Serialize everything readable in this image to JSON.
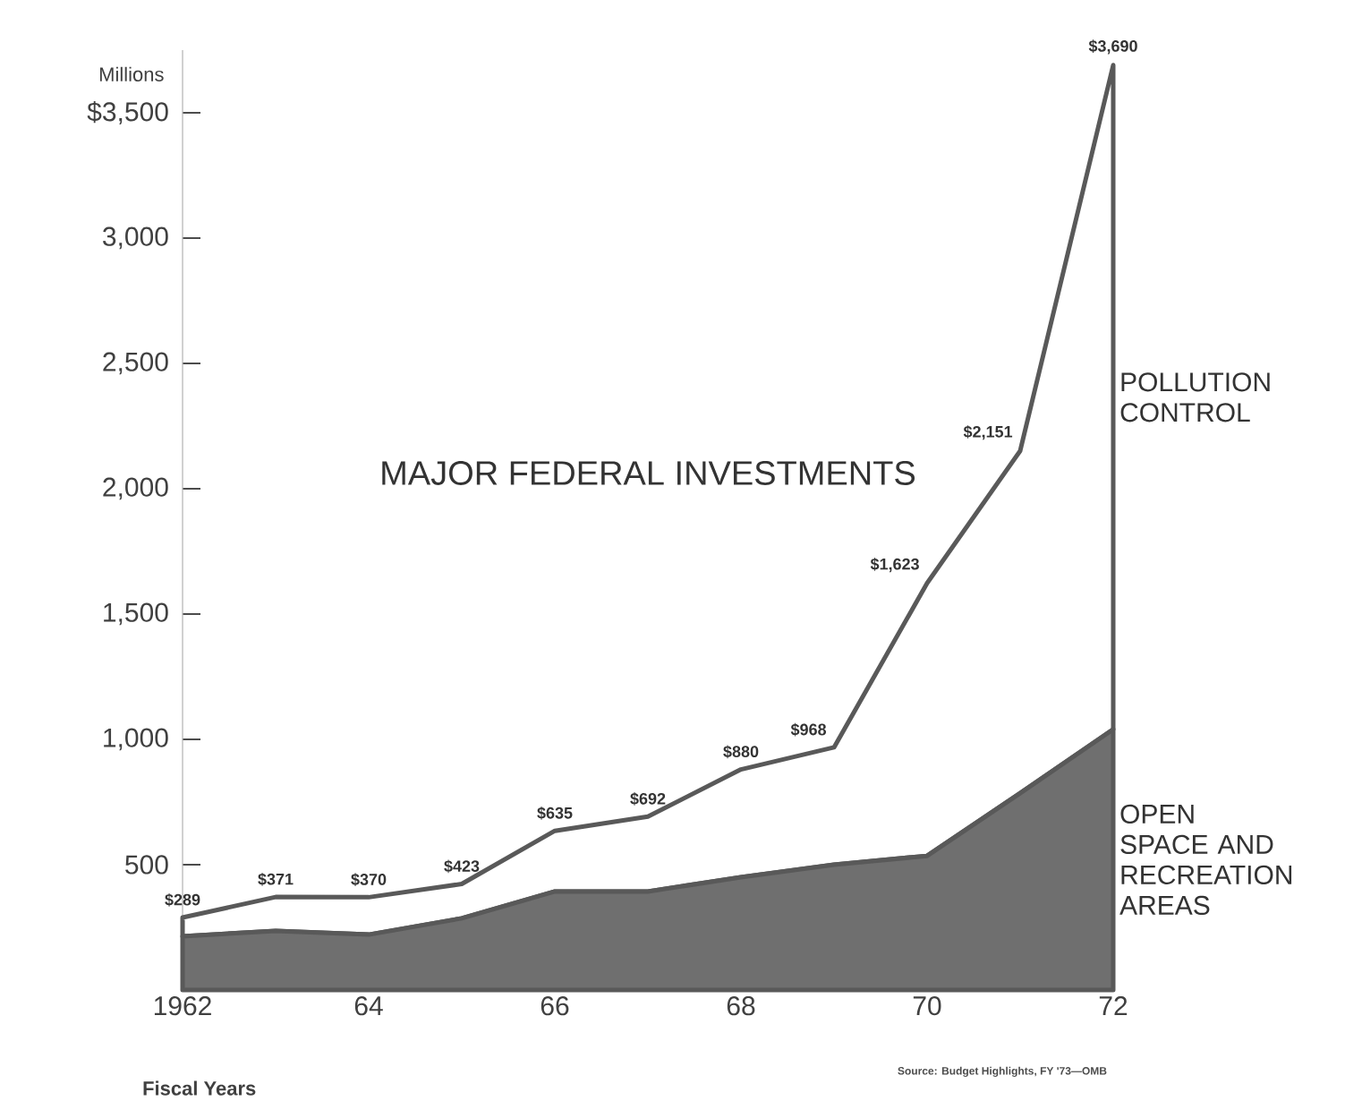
{
  "chart_data": {
    "type": "area",
    "stacked": true,
    "title": "MAJOR FEDERAL INVESTMENTS",
    "xlabel": "Fiscal Years",
    "ylabel": "Millions",
    "x": [
      1962,
      1963,
      1964,
      1965,
      1966,
      1967,
      1968,
      1969,
      1970,
      1971,
      1972
    ],
    "series": [
      {
        "name": "OPEN SPACE AND RECREATION AREAS",
        "color": "#6f6f6f",
        "values": [
          214,
          236,
          221,
          286,
          393,
          393,
          450,
          500,
          535,
          785,
          1040
        ]
      },
      {
        "name": "POLLUTION CONTROL",
        "color": "#ffffff",
        "values": [
          75,
          135,
          149,
          137,
          242,
          299,
          430,
          468,
          1088,
          1366,
          2650
        ]
      }
    ],
    "totals": [
      "$289",
      "$371",
      "$370",
      "$423",
      "$635",
      "$692",
      "$880",
      "$968",
      "$1,623",
      "$2,151",
      "$3,690"
    ],
    "xlim": [
      1962,
      1972
    ],
    "xticks": [
      1962,
      {
        "value": 1964,
        "label": "64"
      },
      {
        "value": 1966,
        "label": "66"
      },
      {
        "value": 1968,
        "label": "68"
      },
      {
        "value": 1970,
        "label": "70"
      },
      {
        "value": 1972,
        "label": "72"
      }
    ],
    "ylim": [
      0,
      3750
    ],
    "yticks": [
      500,
      {
        "value": 1000,
        "label": "1,000"
      },
      {
        "value": 1500,
        "label": "1,500"
      },
      {
        "value": 2000,
        "label": "2,000"
      },
      {
        "value": 2500,
        "label": "2,500"
      },
      {
        "value": 3000,
        "label": "3,000"
      },
      {
        "value": 3500,
        "label": "$3,500"
      }
    ],
    "annotations": [
      "Source: Budget Highlights, FY '73—OMB"
    ]
  }
}
